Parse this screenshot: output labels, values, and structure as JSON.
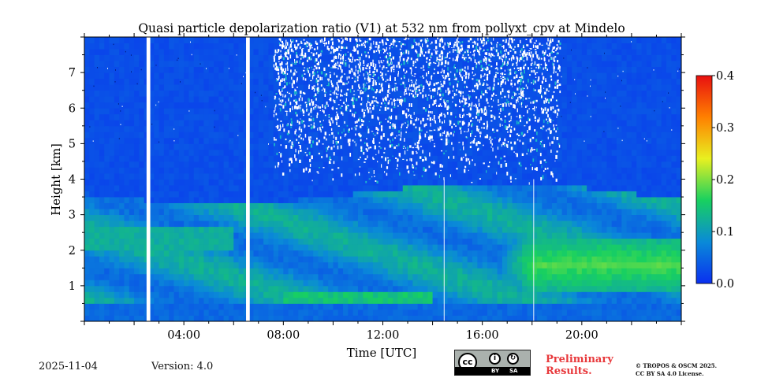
{
  "chart_data": {
    "type": "heatmap",
    "title": "Quasi particle depolarization ratio (V1) at 532 nm from pollyxt_cpv at Mindelo",
    "xlabel": "Time [UTC]",
    "ylabel": "Height [km]",
    "x_range_hours": [
      0,
      24
    ],
    "y_range_km": [
      0,
      8
    ],
    "x_ticks": [
      {
        "value": 4,
        "label": "04:00"
      },
      {
        "value": 8,
        "label": "08:00"
      },
      {
        "value": 12,
        "label": "12:00"
      },
      {
        "value": 16,
        "label": "16:00"
      },
      {
        "value": 20,
        "label": "20:00"
      }
    ],
    "y_ticks": [
      {
        "value": 1,
        "label": "1"
      },
      {
        "value": 2,
        "label": "2"
      },
      {
        "value": 3,
        "label": "3"
      },
      {
        "value": 4,
        "label": "4"
      },
      {
        "value": 5,
        "label": "5"
      },
      {
        "value": 6,
        "label": "6"
      },
      {
        "value": 7,
        "label": "7"
      }
    ],
    "colorbar": {
      "range": [
        0.0,
        0.4
      ],
      "ticks": [
        {
          "value": 0.0,
          "label": "0.0"
        },
        {
          "value": 0.1,
          "label": "0.1"
        },
        {
          "value": 0.2,
          "label": "0.2"
        },
        {
          "value": 0.3,
          "label": "0.3"
        },
        {
          "value": 0.4,
          "label": "0.4"
        }
      ],
      "colors": [
        "#0a2ff0",
        "#0a8ad8",
        "#18d060",
        "#e8f020",
        "#ff8000",
        "#e81010"
      ]
    },
    "data_gaps_hours": [
      [
        2.5,
        2.65
      ],
      [
        6.5,
        6.65
      ]
    ],
    "thin_gaps_hours": [
      14.45,
      18.05
    ],
    "features": {
      "background_value": 0.02,
      "noisy_region": {
        "time_start": 7.6,
        "time_end": 19.1,
        "height_bottom_km": 3.9,
        "height_top_km": 8.0
      },
      "dust_layer": {
        "time_start": 16.0,
        "time_end": 24.0,
        "height_bottom_km": 0.9,
        "height_top_km": 2.3,
        "peak_value": 0.17
      },
      "lower_aerosol_layer": {
        "height_bottom_km": 0.5,
        "height_top_km": 3.6,
        "typical_value": 0.1
      }
    }
  },
  "footer": {
    "date": "2025-11-04",
    "version": "Version: 4.0",
    "license_badge": {
      "cc": "cc",
      "by": "BY",
      "sa": "SA"
    },
    "preliminary_line1": "Preliminary",
    "preliminary_line2": "Results.",
    "copyright_line1": "© TROPOS & OSCM 2025.",
    "copyright_line2": "CC BY SA 4.0 License."
  }
}
